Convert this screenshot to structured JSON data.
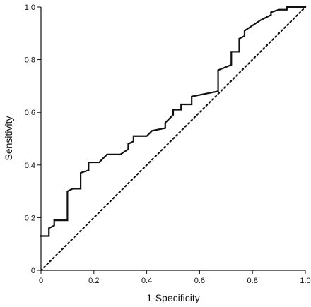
{
  "chart_data": {
    "type": "line",
    "title": "",
    "xlabel": "1-Specificity",
    "ylabel": "Sensitivity",
    "xlim": [
      0,
      1
    ],
    "ylim": [
      0,
      1
    ],
    "x_ticks": [
      "0",
      "0.2",
      "0.4",
      "0.6",
      "0.8",
      "1.0"
    ],
    "y_ticks": [
      "0",
      "0.2",
      "0.4",
      "0.6",
      "0.8",
      "1.0"
    ],
    "grid": false,
    "legend": "none",
    "series": [
      {
        "style": "solid",
        "color": "#111111",
        "x": [
          0.0,
          0.03,
          0.03,
          0.05,
          0.05,
          0.1,
          0.1,
          0.12,
          0.15,
          0.15,
          0.18,
          0.18,
          0.22,
          0.25,
          0.3,
          0.33,
          0.33,
          0.35,
          0.35,
          0.4,
          0.42,
          0.47,
          0.47,
          0.5,
          0.5,
          0.53,
          0.53,
          0.57,
          0.57,
          0.62,
          0.62,
          0.67,
          0.67,
          0.72,
          0.72,
          0.75,
          0.75,
          0.77,
          0.77,
          0.8,
          0.83,
          0.87,
          0.87,
          0.9,
          0.93,
          0.93,
          1.0
        ],
        "y": [
          0.13,
          0.13,
          0.16,
          0.17,
          0.19,
          0.19,
          0.3,
          0.31,
          0.31,
          0.37,
          0.38,
          0.41,
          0.41,
          0.44,
          0.44,
          0.46,
          0.48,
          0.49,
          0.51,
          0.51,
          0.53,
          0.54,
          0.56,
          0.59,
          0.61,
          0.61,
          0.63,
          0.63,
          0.66,
          0.67,
          0.67,
          0.68,
          0.76,
          0.78,
          0.83,
          0.83,
          0.88,
          0.89,
          0.91,
          0.93,
          0.95,
          0.97,
          0.98,
          0.99,
          0.99,
          1.0,
          1.0
        ]
      },
      {
        "style": "dotted",
        "color": "#111111",
        "x": [
          0,
          1
        ],
        "y": [
          0,
          1
        ]
      }
    ]
  }
}
